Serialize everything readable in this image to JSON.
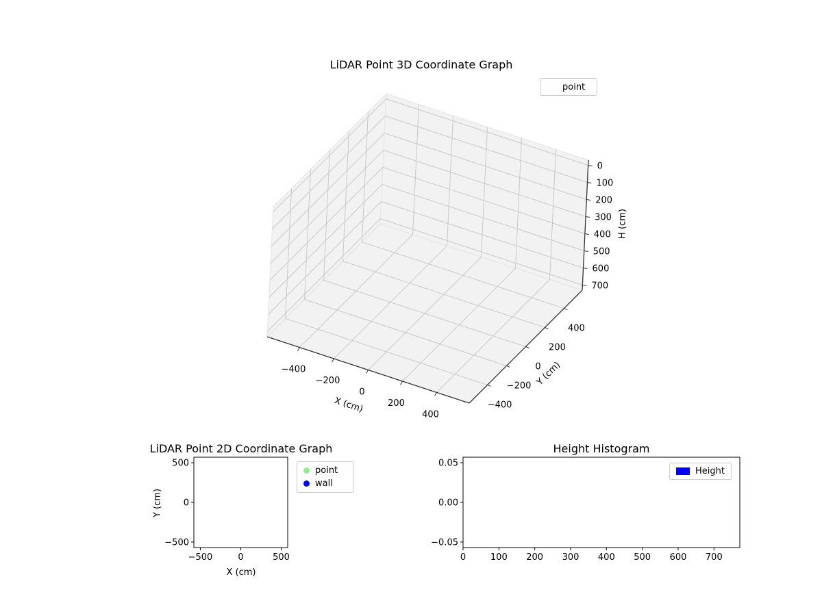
{
  "figure": {
    "background": "#ffffff"
  },
  "chart_data": [
    {
      "id": "plot3d",
      "type": "scatter3d",
      "title": "LiDAR Point 3D Coordinate Graph",
      "xlabel": "X (cm)",
      "ylabel": "Y (cm)",
      "zlabel": "H (cm)",
      "xlim": [
        -590,
        590
      ],
      "ylim": [
        -590,
        590
      ],
      "zlim": [
        -30,
        730
      ],
      "z_axis_inverted": true,
      "xticks": [
        -400,
        -200,
        0,
        200,
        400
      ],
      "xtick_labels": [
        "−400",
        "−200",
        "0",
        "200",
        "400"
      ],
      "yticks": [
        -400,
        -200,
        0,
        200,
        400
      ],
      "ytick_labels": [
        "−400",
        "−200",
        "0",
        "200",
        "400"
      ],
      "zticks": [
        0,
        100,
        200,
        300,
        400,
        500,
        600,
        700
      ],
      "ztick_labels": [
        "0",
        "100",
        "200",
        "300",
        "400",
        "500",
        "600",
        "700"
      ],
      "legend": {
        "location": "upper right",
        "entries": [
          {
            "label": "point",
            "marker": "none"
          }
        ]
      },
      "points": [],
      "style": {
        "pane_color": "#f2f2f2",
        "pane_edge_color": "#e4e4e4",
        "grid_color": "#c9c9c9",
        "axis_line_color": "#333333"
      }
    },
    {
      "id": "plot2d",
      "type": "scatter",
      "title": "LiDAR Point 2D Coordinate Graph",
      "xlabel": "X (cm)",
      "ylabel": "Y (cm)",
      "xlim": [
        -580,
        580
      ],
      "ylim": [
        -570,
        570
      ],
      "xticks": [
        -500,
        0,
        500
      ],
      "xtick_labels": [
        "−500",
        "0",
        "500"
      ],
      "yticks": [
        500,
        0,
        -500
      ],
      "ytick_labels": [
        "500",
        "0",
        "−500"
      ],
      "legend": {
        "location": "upper right outside",
        "entries": [
          {
            "label": "point",
            "marker_color": "#90ee90"
          },
          {
            "label": "wall",
            "marker_color": "#0000ff"
          }
        ]
      },
      "points": [],
      "grid": false
    },
    {
      "id": "height-histogram",
      "type": "bar",
      "title": "Height Histogram",
      "xlabel": "",
      "ylabel": "",
      "xlim": [
        0,
        772
      ],
      "ylim": [
        -0.057,
        0.057
      ],
      "xticks": [
        0,
        100,
        200,
        300,
        400,
        500,
        600,
        700
      ],
      "xtick_labels": [
        "0",
        "100",
        "200",
        "300",
        "400",
        "500",
        "600",
        "700"
      ],
      "yticks": [
        0.05,
        0.0,
        -0.05
      ],
      "ytick_labels": [
        "0.05",
        "0.00",
        "−0.05"
      ],
      "legend": {
        "location": "upper right",
        "entries": [
          {
            "label": "Height",
            "swatch_color": "#0000ff"
          }
        ]
      },
      "values": [],
      "grid": false
    }
  ]
}
